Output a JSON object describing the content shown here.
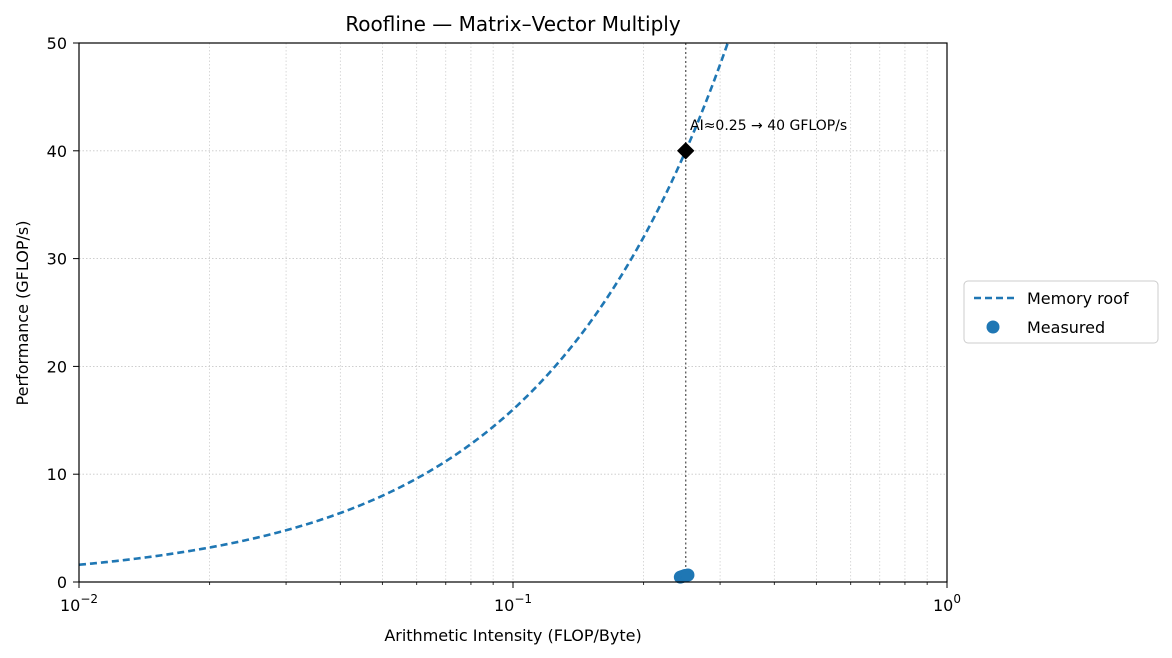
{
  "chart_data": {
    "type": "line",
    "title": "Roofline — Matrix–Vector Multiply",
    "xlabel": "Arithmetic Intensity (FLOP/Byte)",
    "ylabel": "Performance (GFLOP/s)",
    "xscale": "log",
    "xlim": [
      0.01,
      1
    ],
    "ylim": [
      0,
      50
    ],
    "x_ticks": [
      {
        "value": 0.01,
        "base": "10",
        "exp": "−2"
      },
      {
        "value": 0.1,
        "base": "10",
        "exp": "−1"
      },
      {
        "value": 1,
        "base": "10",
        "exp": "0"
      }
    ],
    "y_ticks": [
      0,
      10,
      20,
      30,
      40,
      50
    ],
    "grid": true,
    "legend_position": "right-outside",
    "series": [
      {
        "name": "Memory roof",
        "style": "dashed",
        "color": "#1f77b4",
        "bandwidth_gb_per_s": 160,
        "x_range": [
          0.01,
          0.3125
        ]
      },
      {
        "name": "Measured",
        "style": "scatter",
        "color": "#1f77b4",
        "points": [
          {
            "x": 0.243,
            "y": 0.45
          },
          {
            "x": 0.245,
            "y": 0.5
          },
          {
            "x": 0.247,
            "y": 0.55
          },
          {
            "x": 0.249,
            "y": 0.6
          },
          {
            "x": 0.251,
            "y": 0.62
          },
          {
            "x": 0.253,
            "y": 0.65
          }
        ]
      }
    ],
    "reference_line": {
      "x": 0.25,
      "style": "dotted",
      "color": "#666666"
    },
    "marker": {
      "x": 0.25,
      "y": 40,
      "shape": "diamond",
      "color": "#000000"
    },
    "annotation": {
      "text": "AI≈0.25 → 40 GFLOP/s",
      "x": 0.25,
      "y": 40
    }
  }
}
